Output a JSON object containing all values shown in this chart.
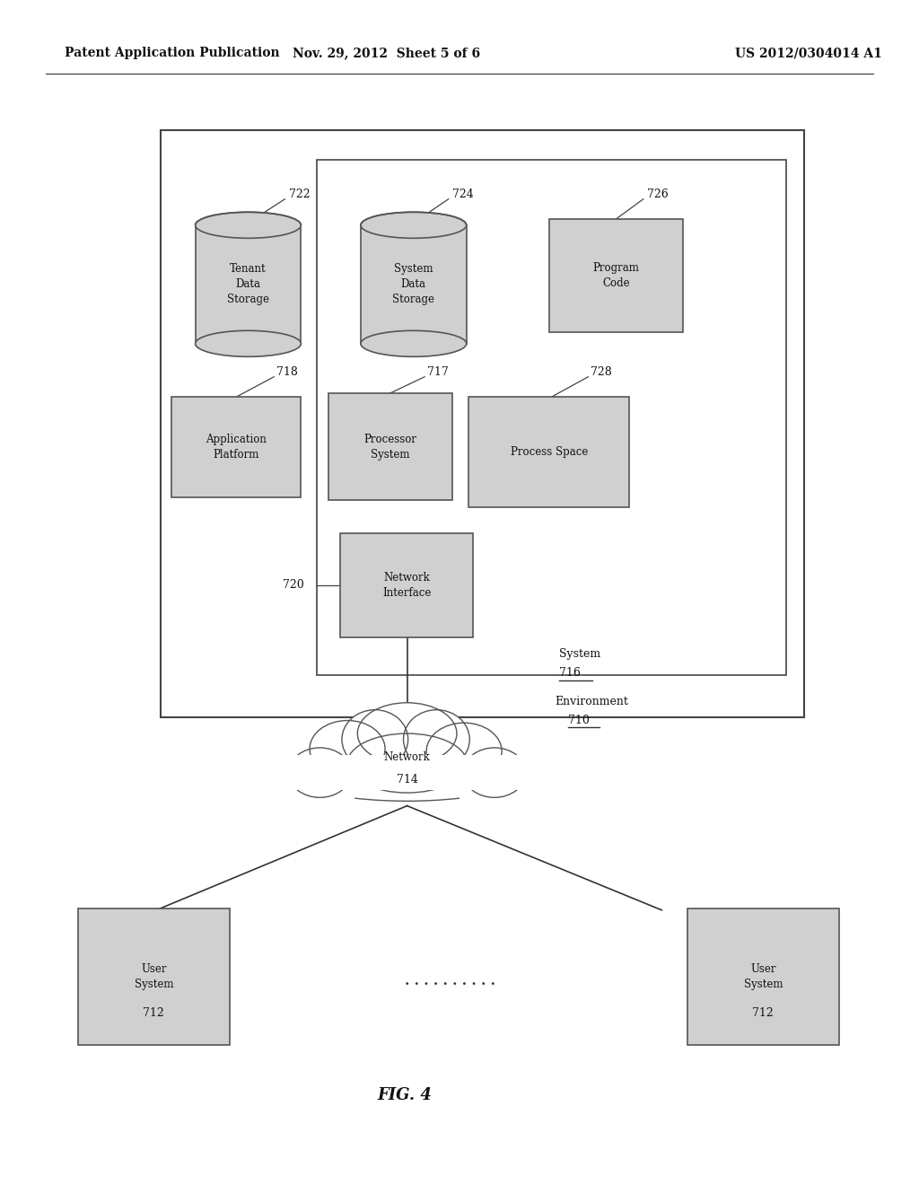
{
  "bg_color": "#ffffff",
  "header_left": "Patent Application Publication",
  "header_mid": "Nov. 29, 2012  Sheet 5 of 6",
  "header_right": "US 2012/0304014 A1",
  "fig_label": "FIG. 4",
  "environment_label": "Environment",
  "environment_number": "710",
  "system_label": "System",
  "system_number": "716"
}
